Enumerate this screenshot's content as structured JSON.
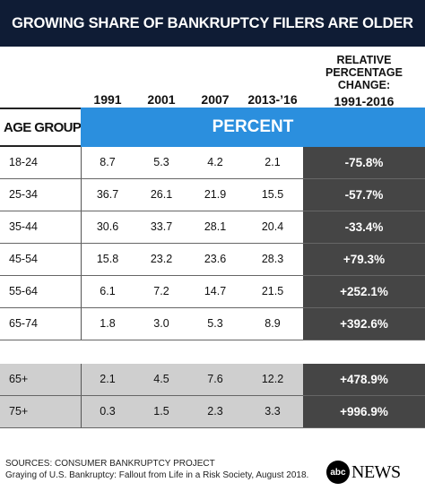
{
  "chart_data": {
    "type": "table",
    "title": "GROWING SHARE OF BANKRUPTCY FILERS ARE OLDER",
    "columns": [
      "1991",
      "2001",
      "2007",
      "2013-’16"
    ],
    "change_header": [
      "RELATIVE",
      "PERCENTAGE",
      "CHANGE:",
      "1991-2016"
    ],
    "row_header": "AGE GROUP",
    "unit_header": "PERCENT",
    "rows": [
      {
        "age": "18-24",
        "values": [
          "8.7",
          "5.3",
          "4.2",
          "2.1"
        ],
        "change": "-75.8%"
      },
      {
        "age": "25-34",
        "values": [
          "36.7",
          "26.1",
          "21.9",
          "15.5"
        ],
        "change": "-57.7%"
      },
      {
        "age": "35-44",
        "values": [
          "30.6",
          "33.7",
          "28.1",
          "20.4"
        ],
        "change": "-33.4%"
      },
      {
        "age": "45-54",
        "values": [
          "15.8",
          "23.2",
          "23.6",
          "28.3"
        ],
        "change": "+79.3%"
      },
      {
        "age": "55-64",
        "values": [
          "6.1",
          "7.2",
          "14.7",
          "21.5"
        ],
        "change": "+252.1%"
      },
      {
        "age": "65-74",
        "values": [
          "1.8",
          "3.0",
          "5.3",
          "8.9"
        ],
        "change": "+392.6%"
      }
    ],
    "summary_rows": [
      {
        "age": "65+",
        "values": [
          "2.1",
          "4.5",
          "7.6",
          "12.2"
        ],
        "change": "+478.9%"
      },
      {
        "age": "75+",
        "values": [
          "0.3",
          "1.5",
          "2.3",
          "3.3"
        ],
        "change": "+996.9%"
      }
    ]
  },
  "footer": {
    "source_line1": "SOURCES: CONSUMER BANKRUPTCY PROJECT",
    "source_line2": "Graying of U.S. Bankruptcy: Fallout from Life in a Risk Society, August 2018.",
    "logo_mark": "abc",
    "logo_text": "NEWS"
  },
  "colors": {
    "title_bg": "#0f1c35",
    "percent_bar": "#2b8fde",
    "change_column": "#454545",
    "summary_bg": "#cfcfcf"
  }
}
